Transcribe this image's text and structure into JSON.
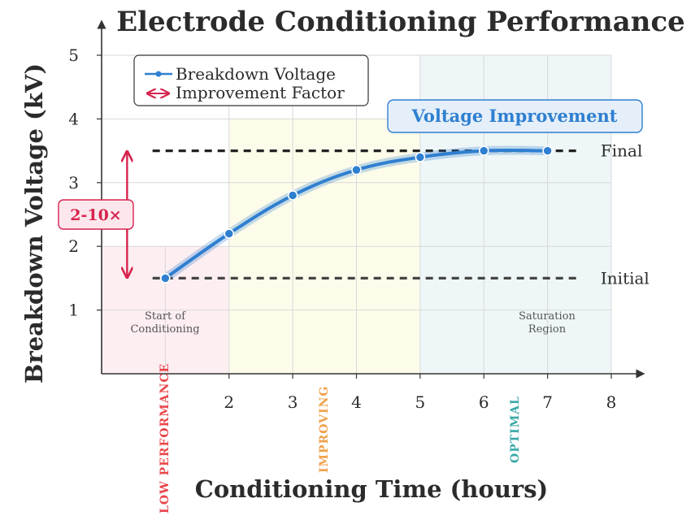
{
  "chart_data": {
    "type": "line",
    "title": "Electrode Conditioning Performance",
    "xlabel": "Conditioning Time (hours)",
    "ylabel": "Breakdown Voltage (kV)",
    "xlim": [
      0,
      8
    ],
    "ylim": [
      0,
      5
    ],
    "x_ticks": [
      2,
      3,
      4,
      5,
      6,
      7,
      8
    ],
    "y_ticks": [
      1,
      2,
      3,
      4,
      5
    ],
    "grid": true,
    "legend": {
      "position": "top-left",
      "entries": [
        "Breakdown Voltage",
        "Improvement Factor"
      ]
    },
    "series": [
      {
        "name": "Breakdown Voltage",
        "x": [
          1,
          2,
          3,
          4,
          5,
          6,
          7
        ],
        "y": [
          1.5,
          2.2,
          2.8,
          3.2,
          3.4,
          3.5,
          3.5
        ],
        "color": "#2f7fd0"
      }
    ],
    "reference_lines": [
      {
        "label": "Final",
        "y": 3.5,
        "x_from": 0.8,
        "x_to": 7.45,
        "color": "#222222"
      },
      {
        "label": "Initial",
        "y": 1.5,
        "x_from": 0.8,
        "x_to": 7.45,
        "color": "#444444"
      }
    ],
    "regions": [
      {
        "label": "LOW PERFORMANCE",
        "x_from": 0,
        "x_to": 2,
        "y_to": 2,
        "fill": "#fdeef2",
        "label_color": "#e8464a"
      },
      {
        "label": "IMPROVING",
        "x_from": 2,
        "x_to": 5,
        "y_to": 4,
        "fill": "#fdfcea",
        "label_color": "#f0a04a"
      },
      {
        "label": "OPTIMAL",
        "x_from": 5,
        "x_to": 8,
        "y_to": 5,
        "fill": "#eef6f7",
        "label_color": "#3aa8a8"
      }
    ],
    "annotations": {
      "start_note": [
        "Start of",
        "Conditioning"
      ],
      "saturation_note": [
        "Saturation",
        "Region"
      ],
      "callout": "Voltage Improvement",
      "improvement_factor": "2-10×",
      "factor_arrow": {
        "x": 0.4,
        "y_from": 1.5,
        "y_to": 3.5
      }
    }
  }
}
